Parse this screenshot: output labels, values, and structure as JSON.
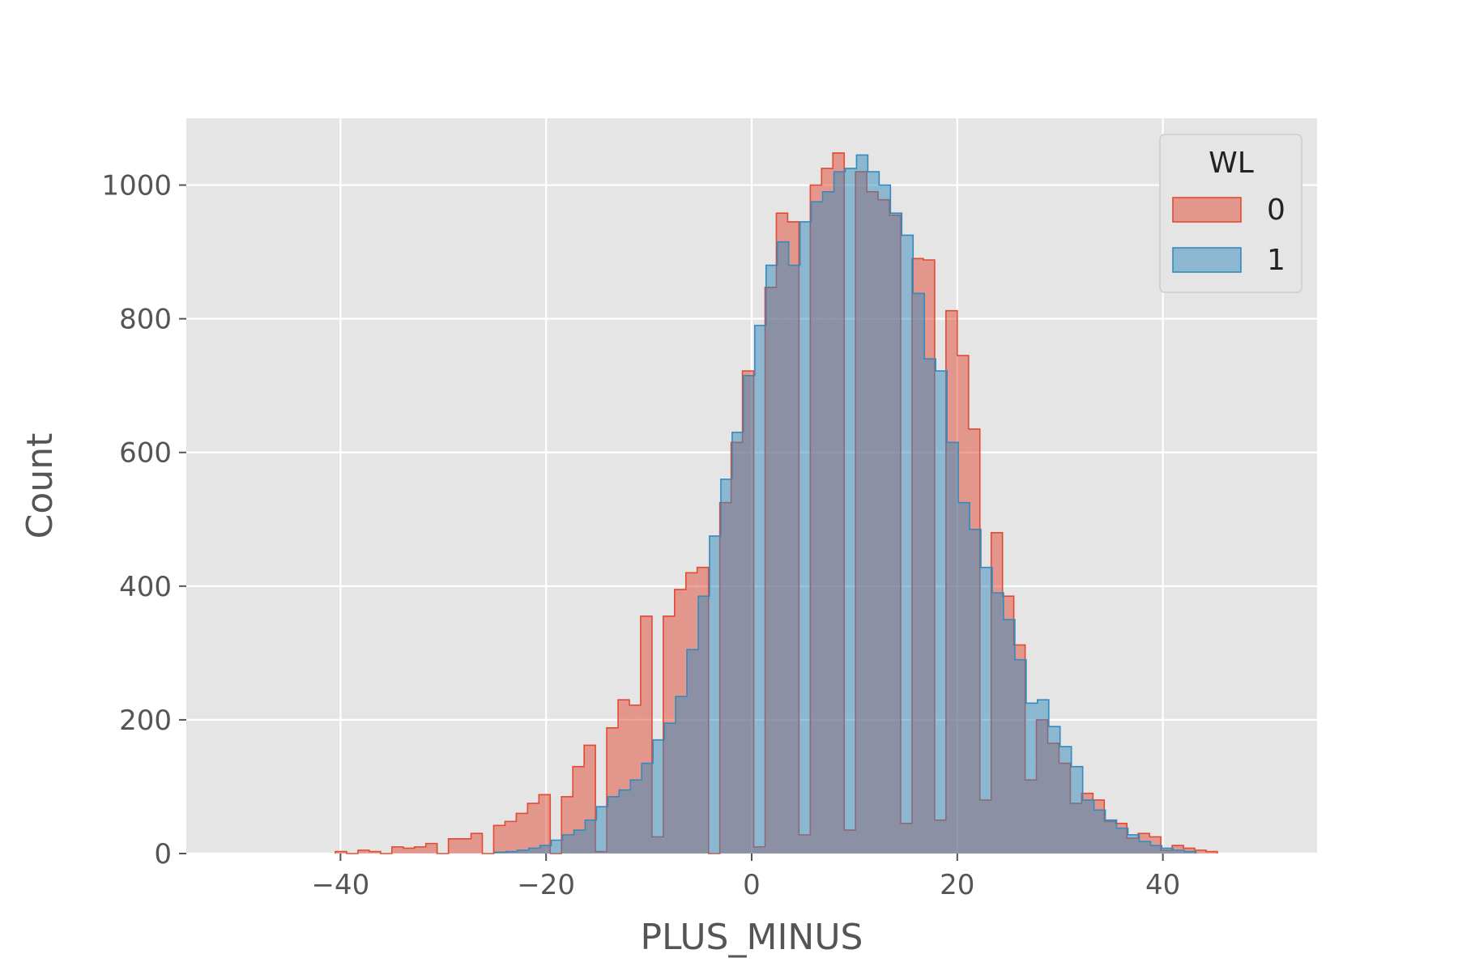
{
  "chart_data": {
    "type": "histogram",
    "title": "",
    "xlabel": "PLUS_MINUS",
    "ylabel": "Count",
    "xlim": [
      -55,
      55
    ],
    "ylim": [
      0,
      1100
    ],
    "xticks": [
      -40,
      -20,
      0,
      20,
      40
    ],
    "xtick_labels": [
      "−40",
      "−20",
      "0",
      "20",
      "40"
    ],
    "yticks": [
      0,
      200,
      400,
      600,
      800,
      1000
    ],
    "ytick_labels": [
      "0",
      "200",
      "400",
      "600",
      "800",
      "1000"
    ],
    "grid": true,
    "bin_width": 1.1,
    "legend": {
      "title": "WL",
      "placement": "top-right",
      "entries": [
        "0",
        "1"
      ]
    },
    "series": [
      {
        "name": "0",
        "color": "#E24A33",
        "bins": [
          [
            -40.5,
            3
          ],
          [
            -39.4,
            0
          ],
          [
            -38.3,
            5
          ],
          [
            -37.2,
            3
          ],
          [
            -36.1,
            0
          ],
          [
            -35,
            10
          ],
          [
            -33.9,
            8
          ],
          [
            -32.8,
            10
          ],
          [
            -31.7,
            15
          ],
          [
            -30.6,
            0
          ],
          [
            -29.5,
            22
          ],
          [
            -28.4,
            22
          ],
          [
            -27.3,
            30
          ],
          [
            -26.2,
            0
          ],
          [
            -25.1,
            42
          ],
          [
            -24,
            48
          ],
          [
            -22.9,
            60
          ],
          [
            -21.8,
            75
          ],
          [
            -20.7,
            88
          ],
          [
            -19.6,
            0
          ],
          [
            -18.5,
            85
          ],
          [
            -17.4,
            130
          ],
          [
            -16.3,
            162
          ],
          [
            -15.2,
            3
          ],
          [
            -14.1,
            188
          ],
          [
            -13,
            230
          ],
          [
            -11.9,
            222
          ],
          [
            -10.8,
            355
          ],
          [
            -9.7,
            25
          ],
          [
            -8.6,
            355
          ],
          [
            -7.5,
            395
          ],
          [
            -6.4,
            420
          ],
          [
            -5.3,
            428
          ],
          [
            -4.2,
            0
          ],
          [
            -3.1,
            525
          ],
          [
            -2,
            615
          ],
          [
            -0.9,
            722
          ],
          [
            0.2,
            10
          ],
          [
            1.3,
            847
          ],
          [
            2.4,
            958
          ],
          [
            3.5,
            945
          ],
          [
            4.6,
            28
          ],
          [
            5.7,
            1000
          ],
          [
            6.8,
            1025
          ],
          [
            7.9,
            1048
          ],
          [
            9,
            35
          ],
          [
            10.1,
            1020
          ],
          [
            11.2,
            990
          ],
          [
            12.3,
            978
          ],
          [
            13.4,
            955
          ],
          [
            14.5,
            45
          ],
          [
            15.6,
            890
          ],
          [
            16.7,
            888
          ],
          [
            17.8,
            50
          ],
          [
            18.9,
            812
          ],
          [
            20,
            745
          ],
          [
            21.1,
            635
          ],
          [
            22.2,
            80
          ],
          [
            23.3,
            480
          ],
          [
            24.4,
            385
          ],
          [
            25.5,
            312
          ],
          [
            26.6,
            110
          ],
          [
            27.7,
            200
          ],
          [
            28.8,
            165
          ],
          [
            29.9,
            135
          ],
          [
            31,
            75
          ],
          [
            32.1,
            90
          ],
          [
            33.2,
            80
          ],
          [
            34.3,
            48
          ],
          [
            35.4,
            45
          ],
          [
            36.5,
            23
          ],
          [
            37.6,
            30
          ],
          [
            38.7,
            25
          ],
          [
            39.8,
            5
          ],
          [
            40.9,
            12
          ],
          [
            42,
            8
          ],
          [
            43.1,
            5
          ],
          [
            44.2,
            3
          ]
        ]
      },
      {
        "name": "1",
        "color": "#348ABD",
        "bins": [
          [
            -25,
            2
          ],
          [
            -23.9,
            3
          ],
          [
            -22.8,
            5
          ],
          [
            -21.7,
            8
          ],
          [
            -20.6,
            12
          ],
          [
            -19.5,
            20
          ],
          [
            -18.4,
            28
          ],
          [
            -17.3,
            35
          ],
          [
            -16.2,
            50
          ],
          [
            -15.1,
            70
          ],
          [
            -14,
            85
          ],
          [
            -12.9,
            95
          ],
          [
            -11.8,
            110
          ],
          [
            -10.7,
            135
          ],
          [
            -9.6,
            170
          ],
          [
            -8.5,
            195
          ],
          [
            -7.4,
            235
          ],
          [
            -6.3,
            305
          ],
          [
            -5.2,
            385
          ],
          [
            -4.1,
            475
          ],
          [
            -3,
            560
          ],
          [
            -1.9,
            630
          ],
          [
            -0.8,
            715
          ],
          [
            0.3,
            790
          ],
          [
            1.4,
            880
          ],
          [
            2.5,
            915
          ],
          [
            3.6,
            880
          ],
          [
            4.7,
            945
          ],
          [
            5.8,
            975
          ],
          [
            6.9,
            990
          ],
          [
            8,
            1020
          ],
          [
            9.1,
            1025
          ],
          [
            10.2,
            1045
          ],
          [
            11.3,
            1020
          ],
          [
            12.4,
            1000
          ],
          [
            13.5,
            958
          ],
          [
            14.6,
            925
          ],
          [
            15.7,
            838
          ],
          [
            16.8,
            740
          ],
          [
            17.9,
            722
          ],
          [
            19,
            615
          ],
          [
            20.1,
            525
          ],
          [
            21.2,
            485
          ],
          [
            22.3,
            428
          ],
          [
            23.4,
            390
          ],
          [
            24.5,
            350
          ],
          [
            25.6,
            290
          ],
          [
            26.7,
            225
          ],
          [
            27.8,
            230
          ],
          [
            28.9,
            190
          ],
          [
            30,
            160
          ],
          [
            31.1,
            130
          ],
          [
            32.2,
            80
          ],
          [
            33.3,
            65
          ],
          [
            34.4,
            50
          ],
          [
            35.5,
            38
          ],
          [
            36.6,
            28
          ],
          [
            37.7,
            18
          ],
          [
            38.8,
            12
          ],
          [
            39.9,
            8
          ],
          [
            41,
            5
          ],
          [
            42.1,
            3
          ]
        ]
      }
    ]
  }
}
